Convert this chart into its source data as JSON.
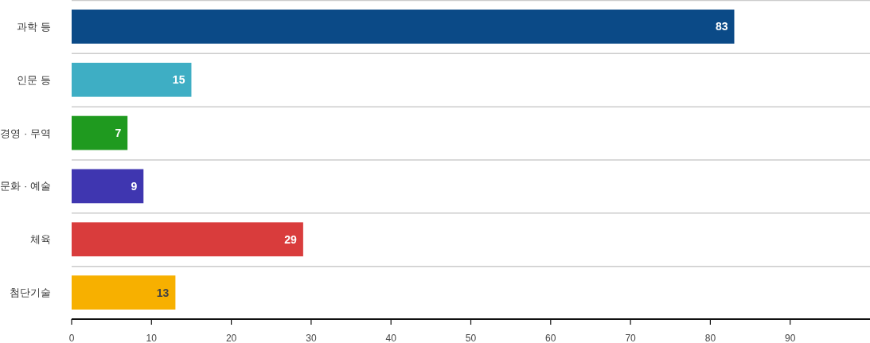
{
  "chart_data": {
    "type": "bar",
    "orientation": "horizontal",
    "categories": [
      "과학 등",
      "인문 등",
      "경영 · 무역",
      "문화 · 예술",
      "체육",
      "첨단기술"
    ],
    "values": [
      83,
      15,
      7,
      9,
      29,
      13
    ],
    "colors": [
      "#0b4a87",
      "#3eaec4",
      "#1f9a1f",
      "#3f36b0",
      "#d93c3c",
      "#f7b000"
    ],
    "xlim": [
      0,
      100
    ],
    "xticks": [
      0,
      10,
      20,
      30,
      40,
      50,
      60,
      70,
      80,
      90
    ],
    "grid": "y",
    "data_labels": true
  }
}
